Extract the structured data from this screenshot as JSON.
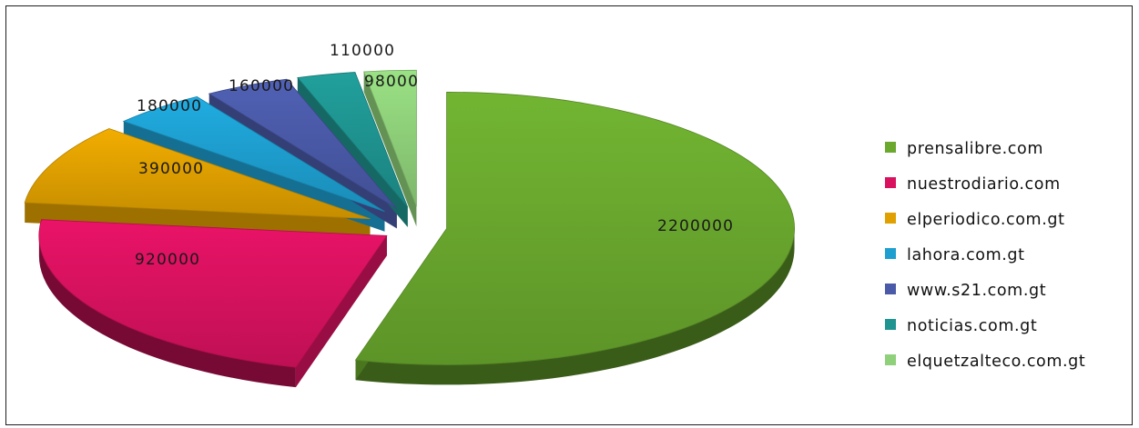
{
  "chart_data": {
    "type": "pie",
    "style": "3d-exploded",
    "title": "",
    "legend_position": "right",
    "slices": [
      {
        "label": "prensalibre.com",
        "value": 2200000,
        "color": "#6aa82e"
      },
      {
        "label": "nuestrodiario.com",
        "value": 920000,
        "color": "#d9125f"
      },
      {
        "label": "elperiodico.com.gt",
        "value": 390000,
        "color": "#e0a000"
      },
      {
        "label": "lahora.com.gt",
        "value": 180000,
        "color": "#1e9fd0"
      },
      {
        "label": "www.s21.com.gt",
        "value": 160000,
        "color": "#4a5aa8"
      },
      {
        "label": "noticias.com.gt",
        "value": 110000,
        "color": "#1f9490"
      },
      {
        "label": "elquetzalteco.com.gt",
        "value": 98000,
        "color": "#8fd07a"
      }
    ],
    "value_labels": [
      "2200000",
      "920000",
      "390000",
      "180000",
      "160000",
      "110000",
      "98000"
    ]
  }
}
